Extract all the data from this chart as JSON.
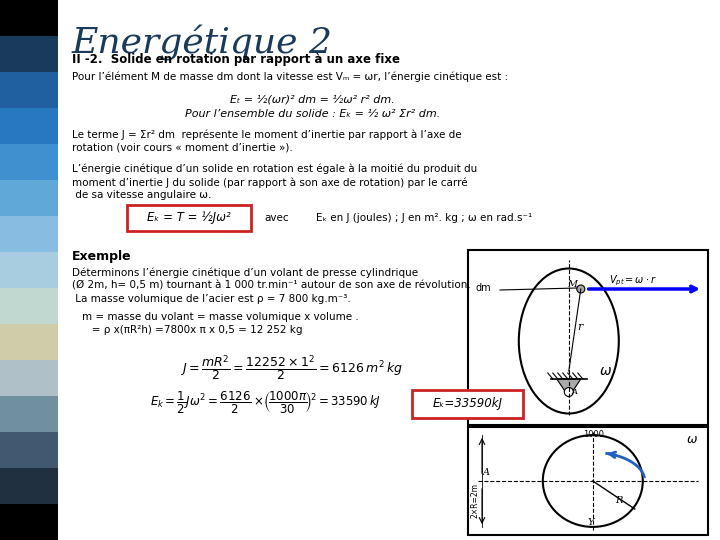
{
  "title": "Energétique 2",
  "subtitle": "II -2.  Solide en rotation par rapport à un axe fixe",
  "bg_color": "#ffffff",
  "title_color": "#1a3a5c",
  "sidebar_colors": [
    "#000000",
    "#1a3a5c",
    "#2060a0",
    "#2878c0",
    "#4090d0",
    "#60a8d8",
    "#88bce0",
    "#a8cce0",
    "#c0d8d0",
    "#d0ccaa",
    "#b0c0c8",
    "#7090a0",
    "#405870",
    "#203040",
    "#000000"
  ],
  "box_color": "#cc2222",
  "line1": "Pour l’élément M de masse dm dont la vitesse est Vₘ = ωr, l’énergie cinétique est :",
  "line2": "Eₜ = ½(ωr)² dm = ½ω² r² dm.",
  "line3": "Pour l’ensemble du solide : Eₖ = ½ ω² Σr² dm.",
  "line4a": "Le terme J = Σr² dm  représente le moment d’inertie par rapport à l’axe de",
  "line4b": "rotation (voir cours « moment d’inertie »).",
  "line5a": "L’énergie cinétique d’un solide en rotation est égale à la moitié du produit du",
  "line5b": "moment d’inertie J du solide (par rapport à son axe de rotation) par le carré",
  "line5c": " de sa vitesse angulaire ω.",
  "formula_text": "Eₖ = T = ½Jω²",
  "avec_text": "avec",
  "units_text": "Eₖ en J (joules) ; J en m². kg ; ω en rad.s⁻¹",
  "ex_title": "Exemple",
  "ex1": "Déterminons l’énergie cinétique d’un volant de presse cylindrique",
  "ex2": "(Ø 2m, h= 0,5 m) tournant à 1 000 tr.min⁻¹ autour de son axe de révolution.",
  "ex3": " La masse volumique de l’acier est ρ = 7 800 kg.m⁻³.",
  "ex4": "m = masse du volant = masse volumique x volume .",
  "ex5": "   = ρ x(πR²h) =7800x π x 0,5 = 12 252 kg",
  "result_box": "Eₖ=33590kJ"
}
